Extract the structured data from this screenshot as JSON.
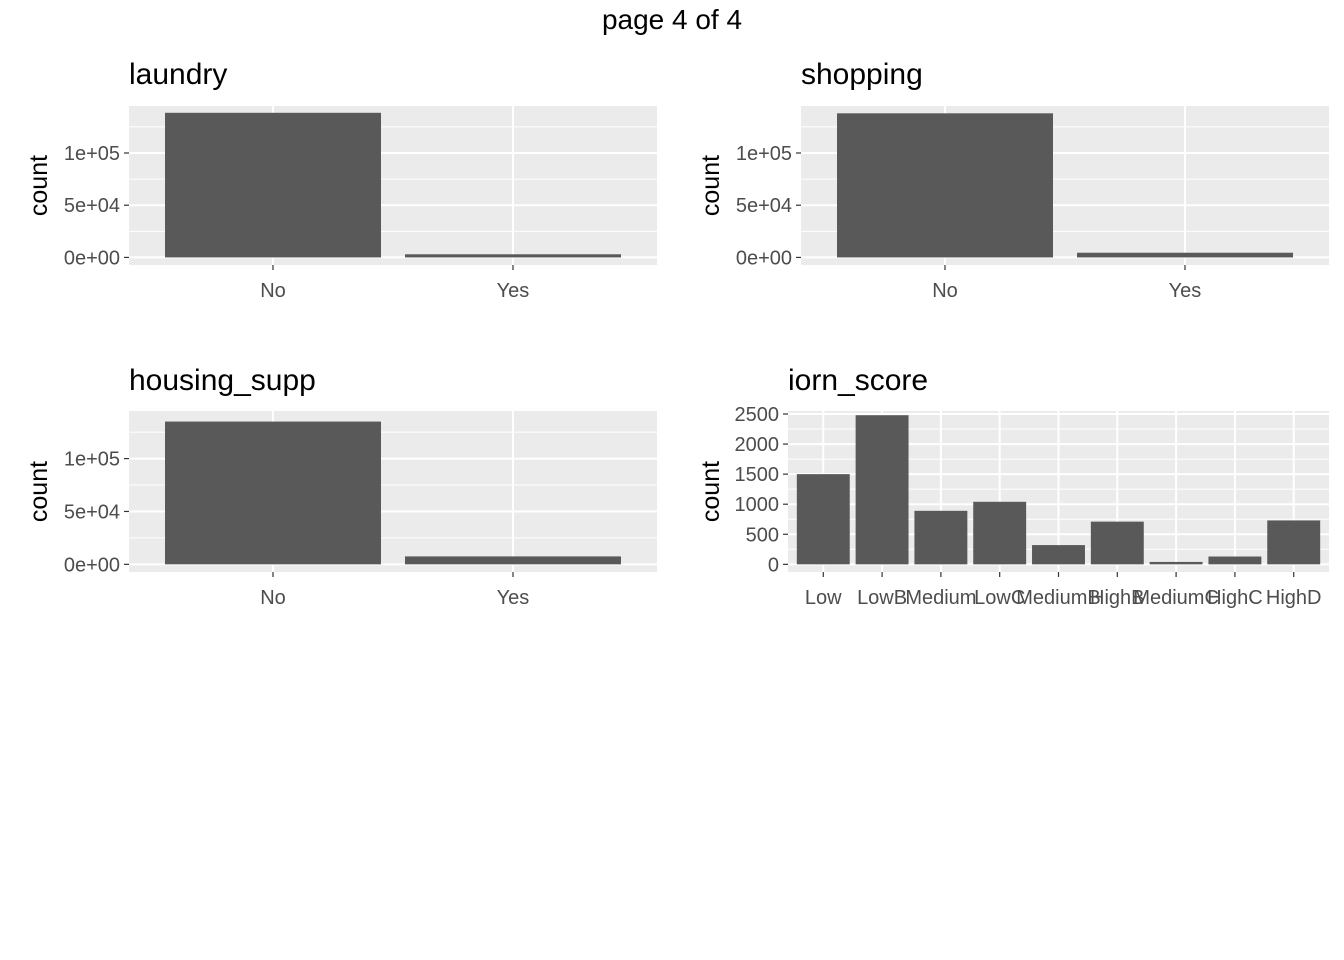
{
  "page_title": "page 4 of 4",
  "colors": {
    "panel_bg": "#EBEBEB",
    "grid": "#FFFFFF",
    "bar": "#595959",
    "tick_text": "#4D4D4D",
    "text": "#000000"
  },
  "chart_data": [
    {
      "type": "bar",
      "title": "laundry",
      "xlabel": "",
      "ylabel": "count",
      "categories": [
        "No",
        "Yes"
      ],
      "values": [
        138500,
        3000
      ],
      "ylim": [
        0,
        145000
      ],
      "yticks": [
        0,
        50000,
        100000
      ],
      "ytick_labels": [
        "0e+00",
        "5e+04",
        "1e+05"
      ],
      "grid": true
    },
    {
      "type": "bar",
      "title": "shopping",
      "xlabel": "",
      "ylabel": "count",
      "categories": [
        "No",
        "Yes"
      ],
      "values": [
        138000,
        4500
      ],
      "ylim": [
        0,
        145000
      ],
      "yticks": [
        0,
        50000,
        100000
      ],
      "ytick_labels": [
        "0e+00",
        "5e+04",
        "1e+05"
      ],
      "grid": true
    },
    {
      "type": "bar",
      "title": "housing_supp",
      "xlabel": "",
      "ylabel": "count",
      "categories": [
        "No",
        "Yes"
      ],
      "values": [
        135000,
        7500
      ],
      "ylim": [
        0,
        145000
      ],
      "yticks": [
        0,
        50000,
        100000
      ],
      "ytick_labels": [
        "0e+00",
        "5e+04",
        "1e+05"
      ],
      "grid": true
    },
    {
      "type": "bar",
      "title": "iorn_score",
      "xlabel": "",
      "ylabel": "count",
      "categories": [
        "Low",
        "LowB",
        "Medium",
        "LowC",
        "MediumB",
        "HighB",
        "MediumC",
        "HighC",
        "HighD"
      ],
      "category_labels": [
        "Low",
        "LowB",
        "Medium",
        "LowC",
        "MediumB",
        "HighB",
        "MediumC",
        "HighC",
        "HighD"
      ],
      "values": [
        1500,
        2480,
        890,
        1040,
        320,
        710,
        40,
        130,
        730
      ],
      "ylim": [
        0,
        2550
      ],
      "yticks": [
        0,
        500,
        1000,
        1500,
        2000,
        2500
      ],
      "ytick_labels": [
        "0",
        "500",
        "1000",
        "1500",
        "2000",
        "2500"
      ],
      "grid": true
    }
  ]
}
